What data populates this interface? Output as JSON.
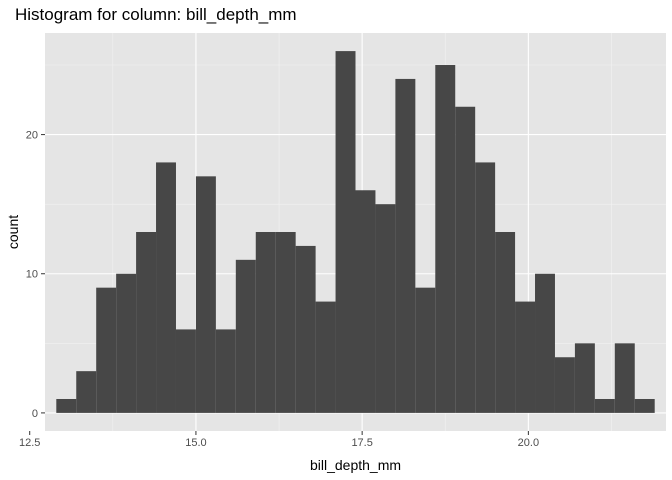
{
  "chart_data": {
    "type": "bar",
    "title": "Histogram for column: bill_depth_mm",
    "xlabel": "bill_depth_mm",
    "ylabel": "count",
    "bin_width": 0.3,
    "bins": [
      {
        "x0": 12.9,
        "x1": 13.2,
        "count": 1
      },
      {
        "x0": 13.2,
        "x1": 13.5,
        "count": 3
      },
      {
        "x0": 13.5,
        "x1": 13.8,
        "count": 9
      },
      {
        "x0": 13.8,
        "x1": 14.1,
        "count": 10
      },
      {
        "x0": 14.1,
        "x1": 14.4,
        "count": 13
      },
      {
        "x0": 14.4,
        "x1": 14.7,
        "count": 18
      },
      {
        "x0": 14.7,
        "x1": 15.0,
        "count": 6
      },
      {
        "x0": 15.0,
        "x1": 15.3,
        "count": 17
      },
      {
        "x0": 15.3,
        "x1": 15.6,
        "count": 6
      },
      {
        "x0": 15.6,
        "x1": 15.9,
        "count": 11
      },
      {
        "x0": 15.9,
        "x1": 16.2,
        "count": 13
      },
      {
        "x0": 16.2,
        "x1": 16.5,
        "count": 13
      },
      {
        "x0": 16.5,
        "x1": 16.8,
        "count": 12
      },
      {
        "x0": 16.8,
        "x1": 17.1,
        "count": 8
      },
      {
        "x0": 17.1,
        "x1": 17.4,
        "count": 26
      },
      {
        "x0": 17.4,
        "x1": 17.7,
        "count": 16
      },
      {
        "x0": 17.7,
        "x1": 18.0,
        "count": 15
      },
      {
        "x0": 18.0,
        "x1": 18.3,
        "count": 24
      },
      {
        "x0": 18.3,
        "x1": 18.6,
        "count": 9
      },
      {
        "x0": 18.6,
        "x1": 18.9,
        "count": 25
      },
      {
        "x0": 18.9,
        "x1": 19.2,
        "count": 22
      },
      {
        "x0": 19.2,
        "x1": 19.5,
        "count": 18
      },
      {
        "x0": 19.5,
        "x1": 19.8,
        "count": 13
      },
      {
        "x0": 19.8,
        "x1": 20.1,
        "count": 8
      },
      {
        "x0": 20.1,
        "x1": 20.4,
        "count": 10
      },
      {
        "x0": 20.4,
        "x1": 20.7,
        "count": 4
      },
      {
        "x0": 20.7,
        "x1": 21.0,
        "count": 5
      },
      {
        "x0": 21.0,
        "x1": 21.3,
        "count": 1
      },
      {
        "x0": 21.3,
        "x1": 21.6,
        "count": 5
      },
      {
        "x0": 21.6,
        "x1": 21.9,
        "count": 1
      }
    ],
    "xlim": [
      12.73,
      22.07
    ],
    "ylim": [
      -1.3,
      27.3
    ],
    "x_ticks": [
      {
        "value": 12.5,
        "label": "12.5"
      },
      {
        "value": 15.0,
        "label": "15.0"
      },
      {
        "value": 17.5,
        "label": "17.5"
      },
      {
        "value": 20.0,
        "label": "20.0"
      }
    ],
    "y_ticks": [
      {
        "value": 0,
        "label": "0"
      },
      {
        "value": 10,
        "label": "10"
      },
      {
        "value": 20,
        "label": "20"
      }
    ],
    "grid": true,
    "legend": "none",
    "colors": {
      "bar_fill": "#474747",
      "panel_background": "#e5e5e5",
      "grid_major": "#ffffff",
      "grid_minor": "#f2f2f2",
      "tick_mark": "#333333"
    }
  }
}
